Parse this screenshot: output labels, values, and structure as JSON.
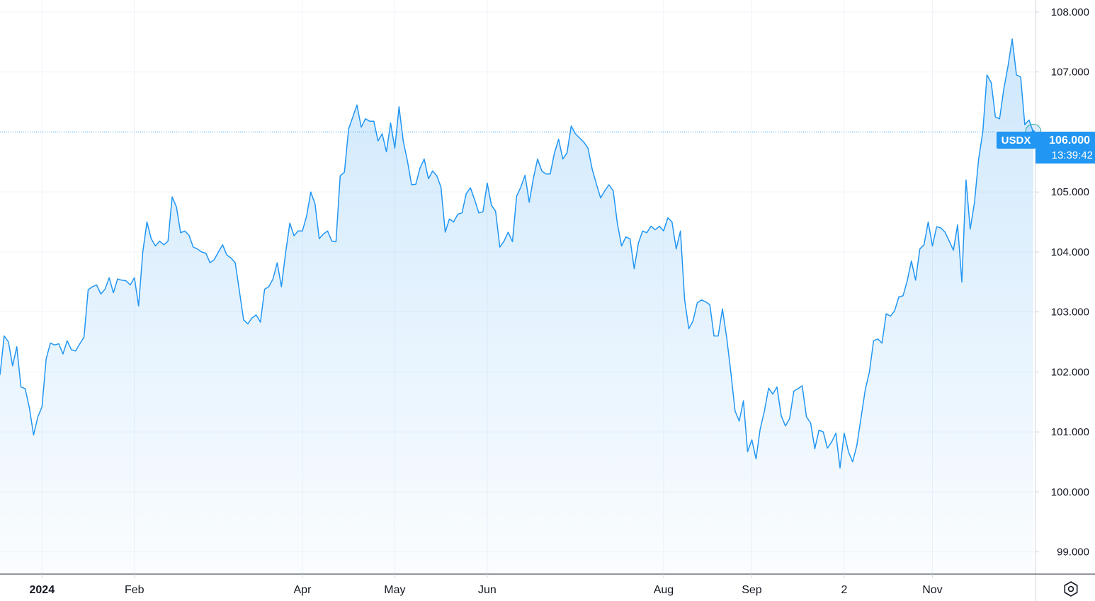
{
  "chart_data": {
    "type": "area",
    "symbol": "USDX",
    "last_value_label": "106.000",
    "countdown": "13:39:42",
    "y_ticks": [
      "108.000",
      "107.000",
      "105.000",
      "104.000",
      "103.000",
      "102.000",
      "101.000",
      "100.000",
      "99.000"
    ],
    "y_tick_values": [
      108,
      107,
      105,
      104,
      103,
      102,
      101,
      100,
      99
    ],
    "ylim": [
      98.63,
      108.2
    ],
    "x_labels": [
      {
        "label": "2024",
        "index": 10,
        "bold": true
      },
      {
        "label": "Feb",
        "index": 32
      },
      {
        "label": "Apr",
        "index": 72
      },
      {
        "label": "May",
        "index": 94
      },
      {
        "label": "Jun",
        "index": 116
      },
      {
        "label": "Aug",
        "index": 158
      },
      {
        "label": "Sep",
        "index": 179
      },
      {
        "label": "2",
        "index": 201
      },
      {
        "label": "Nov",
        "index": 222
      }
    ],
    "series": [
      {
        "values": [
          101.95,
          102.6,
          102.5,
          102.1,
          102.42,
          101.75,
          101.72,
          101.4,
          100.95,
          101.25,
          101.42,
          102.22,
          102.48,
          102.45,
          102.47,
          102.3,
          102.52,
          102.37,
          102.35,
          102.47,
          102.58,
          103.37,
          103.42,
          103.45,
          103.3,
          103.38,
          103.57,
          103.32,
          103.55,
          103.53,
          103.52,
          103.45,
          103.57,
          103.1,
          104.0,
          104.5,
          104.22,
          104.1,
          104.18,
          104.12,
          104.18,
          104.92,
          104.75,
          104.32,
          104.35,
          104.28,
          104.08,
          104.05,
          104.0,
          103.98,
          103.82,
          103.87,
          104.0,
          104.12,
          103.95,
          103.9,
          103.82,
          103.35,
          102.87,
          102.8,
          102.9,
          102.95,
          102.83,
          103.38,
          103.42,
          103.55,
          103.82,
          103.42,
          103.98,
          104.48,
          104.27,
          104.35,
          104.35,
          104.6,
          105.0,
          104.8,
          104.22,
          104.3,
          104.35,
          104.18,
          104.17,
          105.27,
          105.33,
          106.05,
          106.25,
          106.45,
          106.08,
          106.22,
          106.18,
          106.18,
          105.85,
          105.97,
          105.67,
          106.15,
          105.73,
          106.42,
          105.85,
          105.52,
          105.12,
          105.13,
          105.4,
          105.55,
          105.22,
          105.35,
          105.27,
          105.08,
          104.33,
          104.55,
          104.5,
          104.63,
          104.65,
          104.97,
          105.07,
          104.87,
          104.65,
          104.67,
          105.15,
          104.78,
          104.68,
          104.08,
          104.18,
          104.33,
          104.17,
          104.93,
          105.08,
          105.28,
          104.83,
          105.23,
          105.55,
          105.35,
          105.3,
          105.3,
          105.65,
          105.88,
          105.55,
          105.65,
          106.1,
          105.97,
          105.9,
          105.83,
          105.73,
          105.38,
          105.13,
          104.9,
          105.02,
          105.12,
          105.02,
          104.47,
          104.1,
          104.25,
          104.22,
          103.72,
          104.15,
          104.35,
          104.32,
          104.43,
          104.37,
          104.43,
          104.35,
          104.57,
          104.5,
          104.05,
          104.35,
          103.2,
          102.72,
          102.85,
          103.15,
          103.2,
          103.17,
          103.12,
          102.6,
          102.6,
          103.05,
          102.58,
          102.0,
          101.35,
          101.18,
          101.52,
          100.67,
          100.87,
          100.55,
          101.05,
          101.35,
          101.73,
          101.63,
          101.75,
          101.27,
          101.1,
          101.22,
          101.68,
          101.72,
          101.77,
          101.25,
          101.15,
          100.72,
          101.03,
          101.0,
          100.73,
          100.83,
          100.98,
          100.4,
          100.98,
          100.67,
          100.5,
          100.77,
          101.23,
          101.7,
          102.0,
          102.52,
          102.55,
          102.48,
          102.97,
          102.93,
          103.02,
          103.25,
          103.27,
          103.52,
          103.85,
          103.53,
          104.05,
          104.12,
          104.5,
          104.1,
          104.42,
          104.4,
          104.33,
          104.18,
          104.03,
          104.45,
          103.5,
          105.2,
          104.38,
          104.82,
          105.55,
          106.0,
          106.95,
          106.82,
          106.25,
          106.22,
          106.72,
          107.1,
          107.55,
          106.95,
          106.92,
          106.12,
          106.2,
          106.0
        ]
      }
    ],
    "grid": true,
    "line_color": "#2196f3",
    "badge_color": "#2196f3"
  }
}
